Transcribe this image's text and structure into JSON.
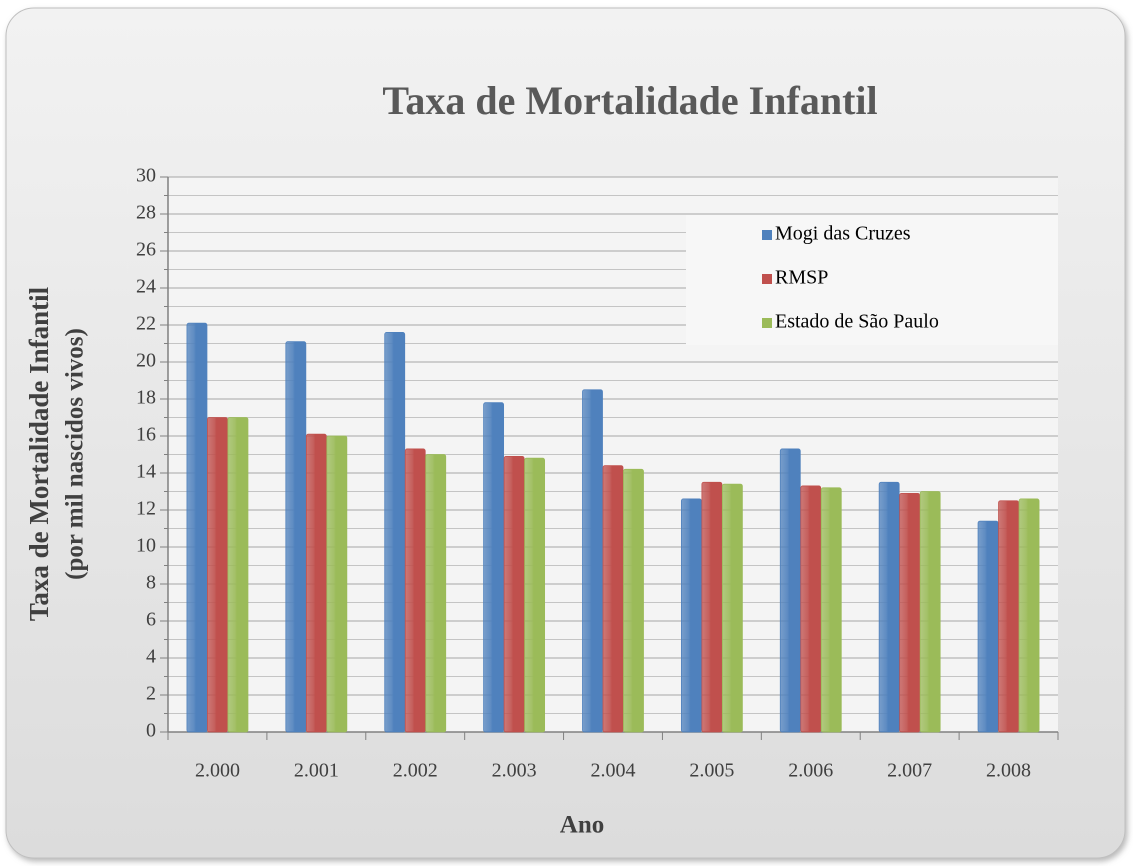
{
  "chart_data": {
    "type": "bar",
    "title": "Taxa de Mortalidade Infantil",
    "x_label": "Ano",
    "y_label": [
      "Taxa de Mortalidade Infantil",
      "(por mil nascidos vivos)"
    ],
    "categories": [
      "2.000",
      "2.001",
      "2.002",
      "2.003",
      "2.004",
      "2.005",
      "2.006",
      "2.007",
      "2.008"
    ],
    "series": [
      {
        "name": "Mogi das Cruzes",
        "color": "#4f81bd",
        "values": [
          22.1,
          21.1,
          21.6,
          17.8,
          18.5,
          12.6,
          15.3,
          13.5,
          11.4
        ]
      },
      {
        "name": "RMSP",
        "color": "#c0504d",
        "values": [
          17.0,
          16.1,
          15.3,
          14.9,
          14.4,
          13.5,
          13.3,
          12.9,
          12.5
        ]
      },
      {
        "name": "Estado de São Paulo",
        "color": "#9bbb59",
        "values": [
          17.0,
          16.0,
          15.0,
          14.8,
          14.2,
          13.4,
          13.2,
          13.0,
          12.6
        ]
      }
    ],
    "ylim": [
      0,
      30
    ],
    "yticks": [
      0,
      2,
      4,
      6,
      8,
      10,
      12,
      14,
      16,
      18,
      20,
      22,
      24,
      26,
      28,
      30
    ],
    "grid": true,
    "legend": "top-right"
  }
}
